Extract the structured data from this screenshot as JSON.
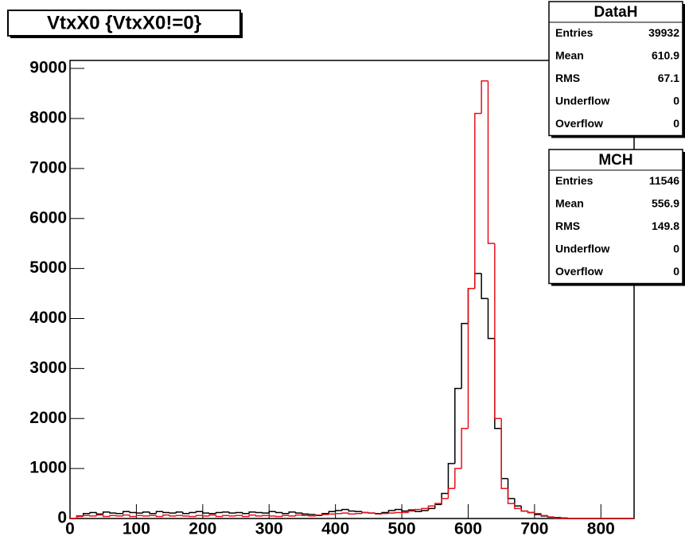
{
  "chart_data": {
    "type": "histogram",
    "title": "VtxX0 {VtxX0!=0}",
    "bins": [
      0,
      10,
      20,
      30,
      40,
      50,
      60,
      70,
      80,
      90,
      100,
      110,
      120,
      130,
      140,
      150,
      160,
      170,
      180,
      190,
      200,
      210,
      220,
      230,
      240,
      250,
      260,
      270,
      280,
      290,
      300,
      310,
      320,
      330,
      340,
      350,
      360,
      370,
      380,
      390,
      400,
      410,
      420,
      430,
      440,
      450,
      460,
      470,
      480,
      490,
      500,
      510,
      520,
      530,
      540,
      550,
      560,
      570,
      580,
      590,
      600,
      610,
      620,
      630,
      640,
      650,
      660,
      670,
      680,
      690,
      700,
      710,
      720,
      730,
      740,
      750,
      760,
      770,
      780,
      790,
      800,
      810,
      820,
      830,
      840,
      850
    ],
    "series": [
      {
        "name": "MCH",
        "color": "#000000",
        "values": [
          0,
          50,
          100,
          120,
          90,
          130,
          110,
          100,
          140,
          120,
          110,
          130,
          100,
          140,
          120,
          110,
          130,
          100,
          120,
          140,
          110,
          100,
          120,
          130,
          110,
          120,
          100,
          130,
          120,
          110,
          140,
          120,
          100,
          130,
          110,
          90,
          80,
          60,
          100,
          140,
          160,
          180,
          150,
          140,
          120,
          110,
          100,
          120,
          160,
          180,
          150,
          170,
          140,
          160,
          200,
          280,
          500,
          1100,
          2600,
          3900,
          4600,
          4900,
          4400,
          3600,
          1800,
          800,
          400,
          250,
          150,
          120,
          80,
          50,
          30,
          20,
          10,
          0,
          0,
          0,
          0,
          0,
          0,
          0,
          0,
          0,
          0
        ]
      },
      {
        "name": "DataH",
        "color": "#e8101a",
        "values": [
          0,
          40,
          60,
          50,
          70,
          40,
          60,
          50,
          70,
          40,
          60,
          50,
          60,
          40,
          70,
          50,
          60,
          50,
          40,
          60,
          50,
          70,
          40,
          60,
          50,
          60,
          40,
          70,
          50,
          60,
          50,
          40,
          60,
          50,
          70,
          60,
          50,
          70,
          80,
          90,
          100,
          110,
          90,
          100,
          120,
          110,
          90,
          100,
          110,
          120,
          120,
          150,
          180,
          200,
          250,
          300,
          400,
          600,
          1000,
          1800,
          4600,
          8100,
          8750,
          5500,
          2000,
          600,
          300,
          200,
          150,
          120,
          100,
          60,
          30,
          10,
          0,
          0,
          0,
          0,
          0,
          0,
          0,
          0,
          0,
          0,
          0
        ]
      }
    ],
    "xlim": [
      0,
      850
    ],
    "xticks": [
      0,
      100,
      200,
      300,
      400,
      500,
      600,
      700,
      800
    ],
    "ylim": [
      0,
      9160
    ],
    "yticks": [
      0,
      1000,
      2000,
      3000,
      4000,
      5000,
      6000,
      7000,
      8000,
      9000
    ],
    "stats": [
      {
        "title": "DataH",
        "rows": [
          [
            "Entries",
            39932
          ],
          [
            "Mean",
            610.9
          ],
          [
            "RMS",
            67.1
          ],
          [
            "Underflow",
            0
          ],
          [
            "Overflow",
            0
          ]
        ]
      },
      {
        "title": "MCH",
        "rows": [
          [
            "Entries",
            11546
          ],
          [
            "Mean",
            556.9
          ],
          [
            "RMS",
            149.8
          ],
          [
            "Underflow",
            0
          ],
          [
            "Overflow",
            0
          ]
        ]
      }
    ]
  }
}
